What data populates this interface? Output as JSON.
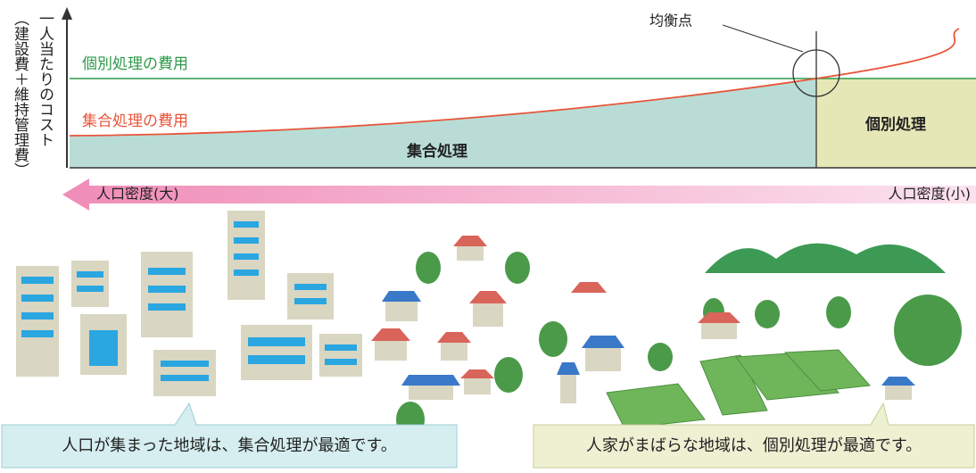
{
  "axis": {
    "label": "一人当たりのコスト",
    "sublabel": "（建設費＋維持管理費）"
  },
  "lines": {
    "individual_cost": "個別処理の費用",
    "collective_cost": "集合処理の費用",
    "equilibrium": "均衡点"
  },
  "areas": {
    "collective": "集合処理",
    "individual": "個別処理"
  },
  "density_arrow": {
    "high": "人口密度(大)",
    "low": "人口密度(小)"
  },
  "callouts": {
    "left": "人口が集まった地域は、集合処理が最適です。",
    "right": "人家がまばらな地域は、個別処理が最適です。"
  }
}
